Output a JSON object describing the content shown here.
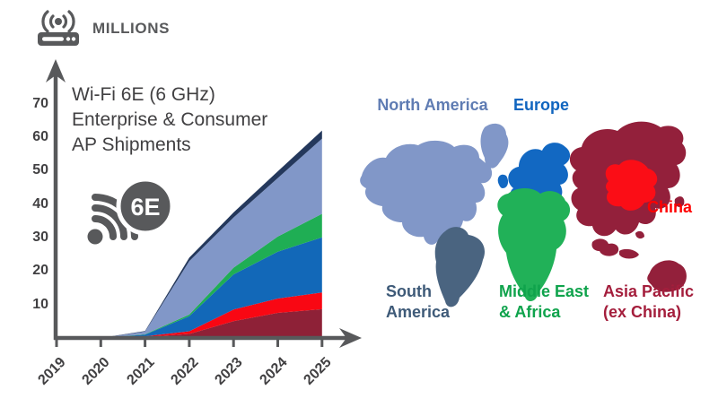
{
  "header": {
    "unit_label": "MILLIONS",
    "icon": "wireless-router-icon"
  },
  "chart": {
    "title_lines": [
      "Wi-Fi 6E (6 GHz)",
      "Enterprise & Consumer",
      "AP Shipments"
    ],
    "badge": "6E",
    "y_ticks": [
      70,
      60,
      50,
      40,
      30,
      20,
      10
    ],
    "x_ticks": [
      "2019",
      "2020",
      "2021",
      "2022",
      "2023",
      "2024",
      "2025"
    ],
    "axis_color": "#58595B"
  },
  "chart_data": {
    "type": "area",
    "stacked": true,
    "title": "Wi-Fi 6E (6 GHz) Enterprise & Consumer AP Shipments",
    "ylabel": "Millions",
    "xlabel": "",
    "ylim": [
      0,
      75
    ],
    "grid": false,
    "legend_position": "map at right (colored regions)",
    "categories": [
      "2019",
      "2020",
      "2021",
      "2022",
      "2023",
      "2024",
      "2025"
    ],
    "series": [
      {
        "name": "Asia Pacific (ex China)",
        "color": "#8E2137",
        "values": [
          0,
          0,
          0.3,
          1.2,
          5.0,
          7.5,
          8.6
        ]
      },
      {
        "name": "China",
        "color": "#F90713",
        "values": [
          0,
          0,
          0.2,
          0.8,
          3.5,
          4.3,
          5.0
        ]
      },
      {
        "name": "Europe",
        "color": "#1268B8",
        "values": [
          0,
          0,
          0.5,
          4.5,
          10.5,
          14.0,
          16.5
        ]
      },
      {
        "name": "Middle East & Africa",
        "color": "#1FAE54",
        "values": [
          0,
          0,
          0.1,
          0.5,
          2.0,
          4.5,
          7.0
        ]
      },
      {
        "name": "North America",
        "color": "#8197C8",
        "values": [
          0,
          0,
          0.8,
          16.0,
          15.0,
          17.5,
          22.5
        ]
      },
      {
        "name": "South America",
        "color": "#24385C",
        "values": [
          0,
          0,
          0.2,
          1.0,
          1.5,
          2.0,
          2.4
        ]
      }
    ],
    "totals_by_year": [
      0,
      0,
      2.1,
      24.0,
      37.5,
      49.8,
      62.0
    ]
  },
  "map": {
    "regions": [
      {
        "id": "north-america",
        "label": "North America",
        "color": "#8197C8",
        "label_color": "#5F7CB3"
      },
      {
        "id": "europe",
        "label": "Europe",
        "color": "#1268C2",
        "label_color": "#1065BF"
      },
      {
        "id": "china",
        "label": "China",
        "color": "#FB0D16",
        "label_color": "#FF0000"
      },
      {
        "id": "south-america",
        "label_lines": [
          "South",
          "America"
        ],
        "color": "#4A6480",
        "label_color": "#3E5A78"
      },
      {
        "id": "middle-east-africa",
        "label_lines": [
          "Middle East",
          "& Africa"
        ],
        "color": "#21B158",
        "label_color": "#0FA34C"
      },
      {
        "id": "asia-pacific-ex-china",
        "label_lines": [
          "Asia Pacific",
          "(ex China)"
        ],
        "color": "#93203B",
        "label_color": "#A41E3C"
      }
    ]
  }
}
